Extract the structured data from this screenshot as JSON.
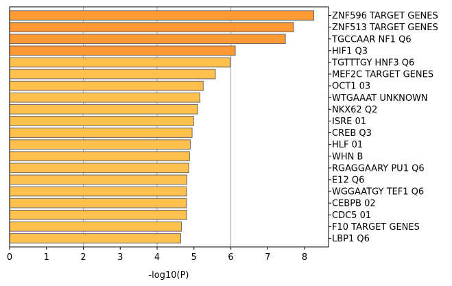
{
  "chart_data": {
    "type": "bar",
    "orientation": "horizontal",
    "xlabel": "-log10(P)",
    "xlim": [
      0,
      8.65
    ],
    "xticks": [
      0,
      1,
      2,
      3,
      4,
      5,
      6,
      7,
      8
    ],
    "grid": "vertical",
    "grid_lines": [
      2,
      4,
      6
    ],
    "category_label_side": "right",
    "colors": {
      "highlight": "#ff9933",
      "normal": "#ffc04d",
      "edge": "#666666",
      "grid": "#b0b0b0",
      "axis": "#000000"
    },
    "categories": [
      "ZNF596 TARGET GENES",
      "ZNF513 TARGET GENES",
      "TGCCAAR NF1 Q6",
      "HIF1 Q3",
      "TGTTTGY HNF3 Q6",
      "MEF2C TARGET GENES",
      "OCT1 03",
      "WTGAAAT UNKNOWN",
      "NKX62 Q2",
      "ISRE 01",
      "CREB Q3",
      "HLF 01",
      "WHN B",
      "RGAGGAARY PU1 Q6",
      "E12 Q6",
      "WGGAATGY TEF1 Q6",
      "CEBPB 02",
      "CDC5 01",
      "F10 TARGET GENES",
      "LBP1 Q6"
    ],
    "values": [
      8.25,
      7.7,
      7.48,
      6.12,
      5.98,
      5.58,
      5.25,
      5.16,
      5.1,
      4.99,
      4.95,
      4.9,
      4.88,
      4.86,
      4.81,
      4.8,
      4.8,
      4.8,
      4.66,
      4.64
    ],
    "highlighted": [
      true,
      true,
      true,
      true,
      false,
      false,
      false,
      false,
      false,
      false,
      false,
      false,
      false,
      false,
      false,
      false,
      false,
      false,
      false,
      false
    ]
  }
}
